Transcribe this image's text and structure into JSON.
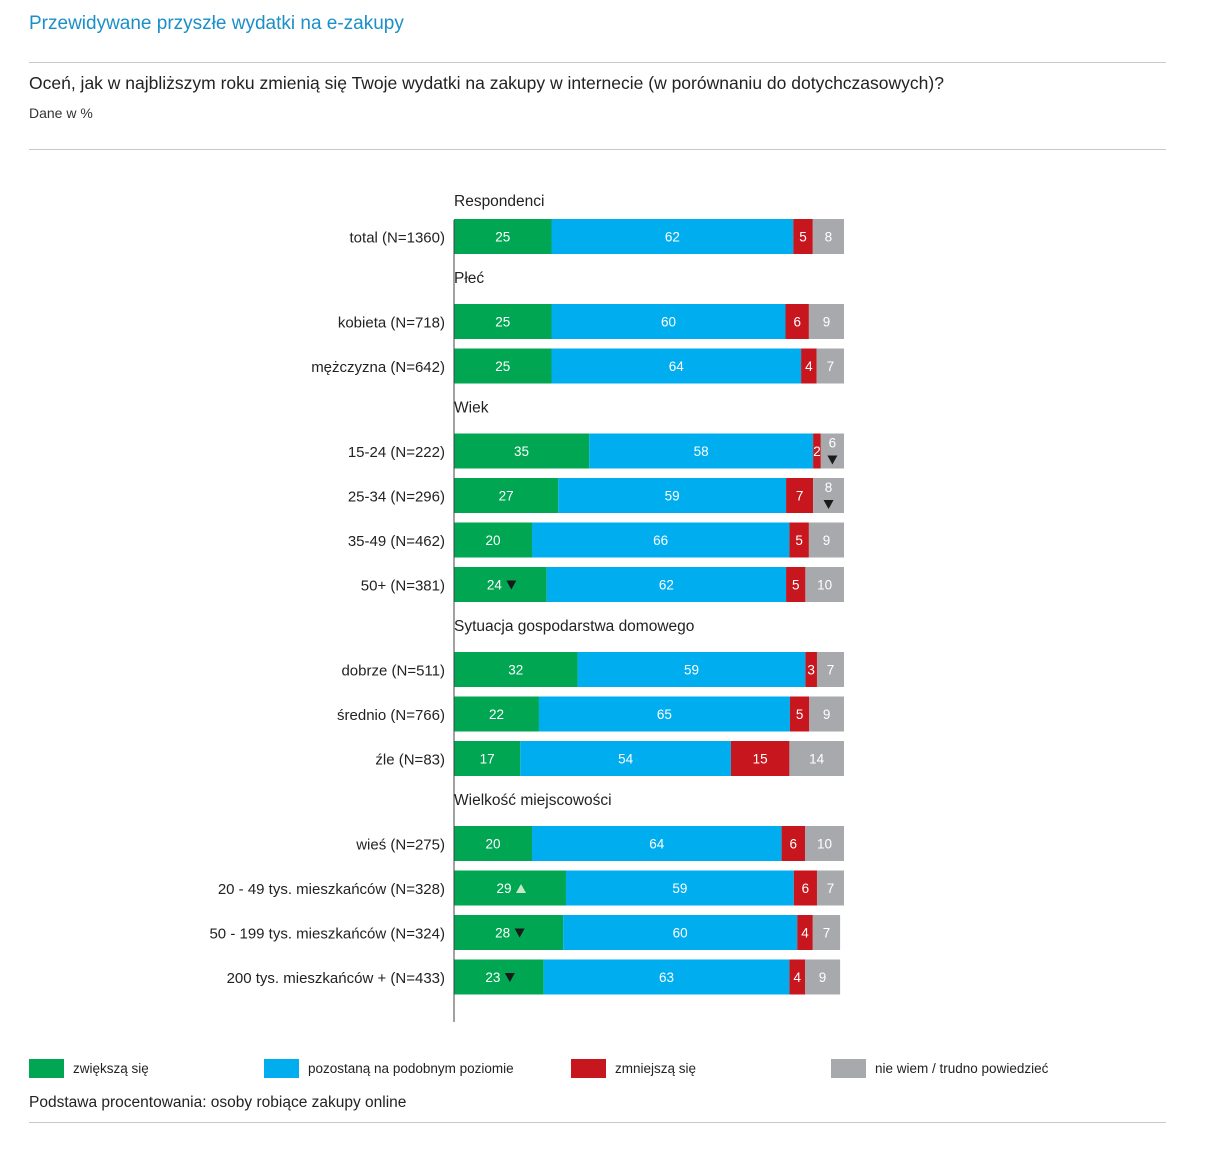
{
  "page": {
    "title": "Przewidywane przyszłe wydatki na e-zakupy",
    "question": "Oceń, jak w najbliższym roku zmienią się Twoje wydatki na zakupy w internecie (w porównaniu do dotychczasowych)?",
    "unit_note": "Dane w %",
    "base_note": "Podstawa procentowania: osoby robiące zakupy online"
  },
  "legend": [
    {
      "label": "zwiększą się",
      "color": "#00a651"
    },
    {
      "label": "pozostaną na podobnym poziomie",
      "color": "#00aeef"
    },
    {
      "label": "zmniejszą się",
      "color": "#c8161e"
    },
    {
      "label": "nie wiem / trudno powiedzieć",
      "color": "#a7a9ac"
    }
  ],
  "chart_data": {
    "type": "bar",
    "orientation": "horizontal",
    "stacked": true,
    "xlim": [
      0,
      100
    ],
    "series_names": [
      "zwiększą się",
      "pozostaną na podobnym poziomie",
      "zmniejszą się",
      "nie wiem / trudno powiedzieć"
    ],
    "colors": [
      "#00a651",
      "#00aeef",
      "#c8161e",
      "#a7a9ac"
    ],
    "groups": [
      {
        "title": "Respondenci",
        "rows": [
          {
            "label": "total (N=1360)",
            "values": [
              25,
              62,
              5,
              8
            ],
            "markers": {}
          }
        ]
      },
      {
        "title": "Płeć",
        "rows": [
          {
            "label": "kobieta (N=718)",
            "values": [
              25,
              60,
              6,
              9
            ],
            "markers": {}
          },
          {
            "label": "mężczyzna (N=642)",
            "values": [
              25,
              64,
              4,
              7
            ],
            "markers": {}
          }
        ]
      },
      {
        "title": "Wiek",
        "rows": [
          {
            "label": "15-24 (N=222)",
            "values": [
              35,
              58,
              2,
              6
            ],
            "markers": {
              "3": "down"
            }
          },
          {
            "label": "25-34 (N=296)",
            "values": [
              27,
              59,
              7,
              8
            ],
            "markers": {
              "3": "down"
            }
          },
          {
            "label": "35-49 (N=462)",
            "values": [
              20,
              66,
              5,
              9
            ],
            "markers": {}
          },
          {
            "label": "50+ (N=381)",
            "values": [
              24,
              62,
              5,
              10
            ],
            "markers": {
              "0": "down"
            }
          }
        ]
      },
      {
        "title": "Sytuacja gospodarstwa domowego",
        "rows": [
          {
            "label": "dobrze (N=511)",
            "values": [
              32,
              59,
              3,
              7
            ],
            "markers": {}
          },
          {
            "label": "średnio (N=766)",
            "values": [
              22,
              65,
              5,
              9
            ],
            "markers": {}
          },
          {
            "label": "źle (N=83)",
            "values": [
              17,
              54,
              15,
              14
            ],
            "markers": {}
          }
        ]
      },
      {
        "title": "Wielkość miejscowości",
        "rows": [
          {
            "label": "wieś (N=275)",
            "values": [
              20,
              64,
              6,
              10
            ],
            "markers": {}
          },
          {
            "label": "20 - 49 tys. mieszkańców (N=328)",
            "values": [
              29,
              59,
              6,
              7
            ],
            "markers": {
              "0": "up"
            }
          },
          {
            "label": "50 - 199 tys. mieszkańców (N=324)",
            "values": [
              28,
              60,
              4,
              7
            ],
            "markers": {
              "0": "down"
            }
          },
          {
            "label": "200 tys. mieszkańców +  (N=433)",
            "values": [
              23,
              63,
              4,
              9
            ],
            "markers": {
              "0": "down"
            }
          }
        ]
      }
    ]
  }
}
